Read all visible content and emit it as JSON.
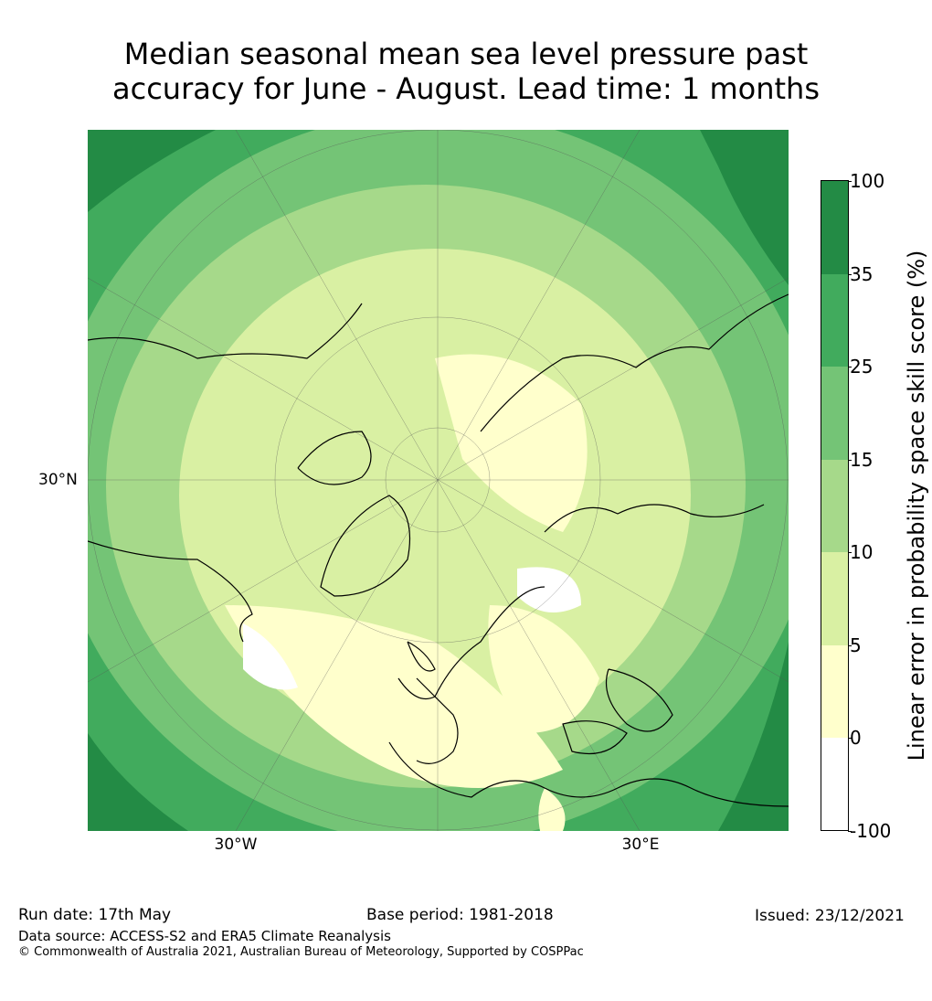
{
  "title": {
    "line1": "Median seasonal mean sea level pressure past",
    "line2": "accuracy for June - August. Lead time: 1 months"
  },
  "map": {
    "projection": "north-polar-stereographic",
    "lat_labels": [
      "30°N"
    ],
    "lon_labels": [
      "30°W",
      "30°E"
    ]
  },
  "colorbar": {
    "label": "Linear error in probability space skill score (%)",
    "ticks": [
      "100",
      "35",
      "25",
      "15",
      "10",
      "5",
      "0",
      "-100"
    ],
    "bins": [
      {
        "range": "35 to 100",
        "color": "#238b45"
      },
      {
        "range": "25 to 35",
        "color": "#41ab5d"
      },
      {
        "range": "15 to 25",
        "color": "#74c476"
      },
      {
        "range": "10 to 15",
        "color": "#a6d98a"
      },
      {
        "range": "5 to 10",
        "color": "#d9f0a3"
      },
      {
        "range": "0 to 5",
        "color": "#ffffcc"
      },
      {
        "range": "-100 to 0",
        "color": "#ffffff"
      }
    ]
  },
  "footer": {
    "run_date": "Run date: 17th May",
    "base_period": "Base period: 1981-2018",
    "issued": "Issued: 23/12/2021",
    "data_source": "Data source: ACCESS-S2 and ERA5 Climate Reanalysis",
    "copyright": "© Commonwealth of Australia 2021, Australian Bureau of Meteorology, Supported by COSPPac"
  }
}
